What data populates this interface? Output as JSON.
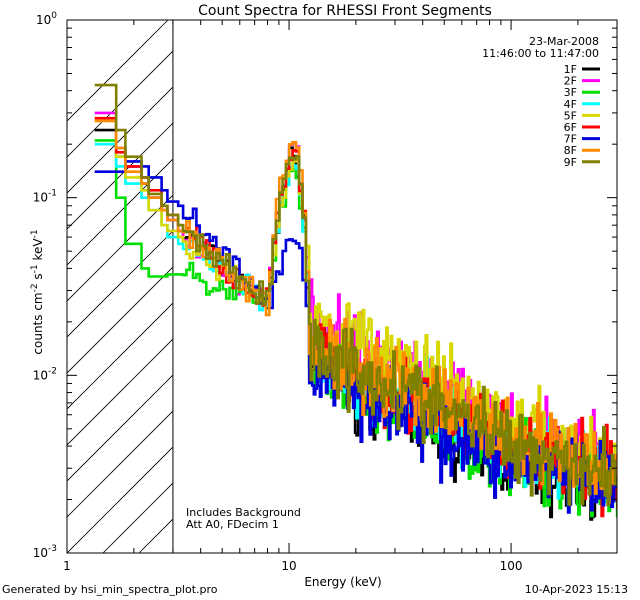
{
  "chart_data": {
    "type": "line",
    "title": "Count Spectra for RHESSI Front Segments",
    "xlabel": "Energy (keV)",
    "ylabel_parts": {
      "base": "counts cm",
      "exp1": "-2",
      "mid": " s",
      "exp2": "-1",
      "unit": " keV",
      "exp3": "-1"
    },
    "xscale": "log",
    "yscale": "log",
    "xlim": [
      1,
      300
    ],
    "ylim": [
      0.001,
      1
    ],
    "x_ticks": [
      {
        "value": 1,
        "label": "1"
      },
      {
        "value": 10,
        "label": "10"
      },
      {
        "value": 100,
        "label": "100"
      }
    ],
    "y_ticks": [
      {
        "value": 0.001,
        "base": "10",
        "exp": "-3"
      },
      {
        "value": 0.01,
        "base": "10",
        "exp": "-2"
      },
      {
        "value": 0.1,
        "base": "10",
        "exp": "-1"
      },
      {
        "value": 1,
        "base": "10",
        "exp": "0"
      }
    ],
    "hatched_region": {
      "x_from": 1,
      "x_to": 3
    },
    "legend_header": [
      "23-Mar-2008",
      "11:46:00 to 11:47:00"
    ],
    "annotations": [
      "Includes Background",
      "Att A0, FDecim 1"
    ],
    "series": [
      {
        "name": "1F",
        "color": "#000000",
        "low": [
          0.24,
          0.17,
          0.15,
          0.12,
          0.1,
          0.085,
          0.075,
          0.065
        ],
        "peak": 0.16,
        "tail10": 0.012,
        "tail100": 0.0032,
        "tail300": 0.0022
      },
      {
        "name": "2F",
        "color": "#ff00ff",
        "low": [
          0.3,
          0.19,
          0.15,
          0.13,
          0.1,
          0.085,
          0.075,
          0.065
        ],
        "peak": 0.18,
        "tail10": 0.02,
        "tail100": 0.005,
        "tail300": 0.003
      },
      {
        "name": "3F",
        "color": "#00e000",
        "low": [
          0.21,
          0.1,
          0.055,
          0.04,
          0.036,
          0.036,
          0.037,
          0.037
        ],
        "peak": 0.13,
        "tail10": 0.011,
        "tail100": 0.0034,
        "tail300": 0.0024
      },
      {
        "name": "4F",
        "color": "#00ffff",
        "low": [
          0.2,
          0.15,
          0.12,
          0.1,
          0.085,
          0.07,
          0.06,
          0.055
        ],
        "peak": 0.14,
        "tail10": 0.013,
        "tail100": 0.004,
        "tail300": 0.0026
      },
      {
        "name": "5F",
        "color": "#d8d800",
        "low": [
          0.27,
          0.17,
          0.13,
          0.11,
          0.085,
          0.07,
          0.065,
          0.06
        ],
        "peak": 0.15,
        "tail10": 0.022,
        "tail100": 0.0052,
        "tail300": 0.0032
      },
      {
        "name": "6F",
        "color": "#ff0000",
        "low": [
          0.28,
          0.18,
          0.15,
          0.13,
          0.11,
          0.09,
          0.08,
          0.07
        ],
        "peak": 0.17,
        "tail10": 0.014,
        "tail100": 0.0038,
        "tail300": 0.0026
      },
      {
        "name": "7F",
        "color": "#0000dd",
        "low": [
          0.14,
          0.14,
          0.16,
          0.15,
          0.13,
          0.11,
          0.095,
          0.09
        ],
        "peak": 0.06,
        "tail10": 0.011,
        "tail100": 0.0032,
        "tail300": 0.0023
      },
      {
        "name": "8F",
        "color": "#ff8c00",
        "low": [
          0.27,
          0.19,
          0.14,
          0.12,
          0.1,
          0.085,
          0.075,
          0.065
        ],
        "peak": 0.19,
        "tail10": 0.016,
        "tail100": 0.0045,
        "tail300": 0.0028
      },
      {
        "name": "9F",
        "color": "#808000",
        "low": [
          0.43,
          0.24,
          0.17,
          0.13,
          0.105,
          0.09,
          0.08,
          0.07
        ],
        "peak": 0.17,
        "tail10": 0.015,
        "tail100": 0.0042,
        "tail300": 0.0027
      }
    ]
  },
  "footer": {
    "generated_by": "Generated by hsi_min_spectra_plot.pro",
    "timestamp": "10-Apr-2023 15:13"
  }
}
